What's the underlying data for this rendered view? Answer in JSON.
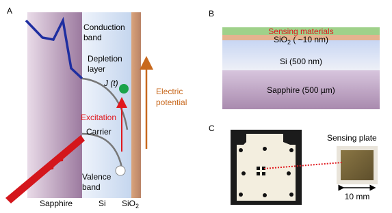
{
  "panel_a": {
    "letter": "A",
    "conduction": [
      "Conduction",
      "band"
    ],
    "depletion": [
      "Depletion",
      "layer"
    ],
    "current": "J (t)",
    "excitation": "Excitation",
    "carrier": "Carrier",
    "valence": [
      "Valence",
      "band"
    ],
    "potential": [
      "Electric",
      "potential"
    ],
    "bottom": {
      "sapphire": "Sapphire",
      "si": "Si",
      "sio2": {
        "text": "SiO",
        "sub": "2"
      }
    }
  },
  "panel_b": {
    "letter": "B",
    "layers": {
      "sensing": "Sensing materials",
      "sio2": {
        "text": "SiO",
        "sub": "2",
        "rest": " ( ~10 nm)"
      },
      "si": "Si (500 nm)",
      "sapphire": "Sapphire (500 µm)"
    }
  },
  "panel_c": {
    "letter": "C",
    "plate": "Sensing plate",
    "scale": "10 mm"
  }
}
